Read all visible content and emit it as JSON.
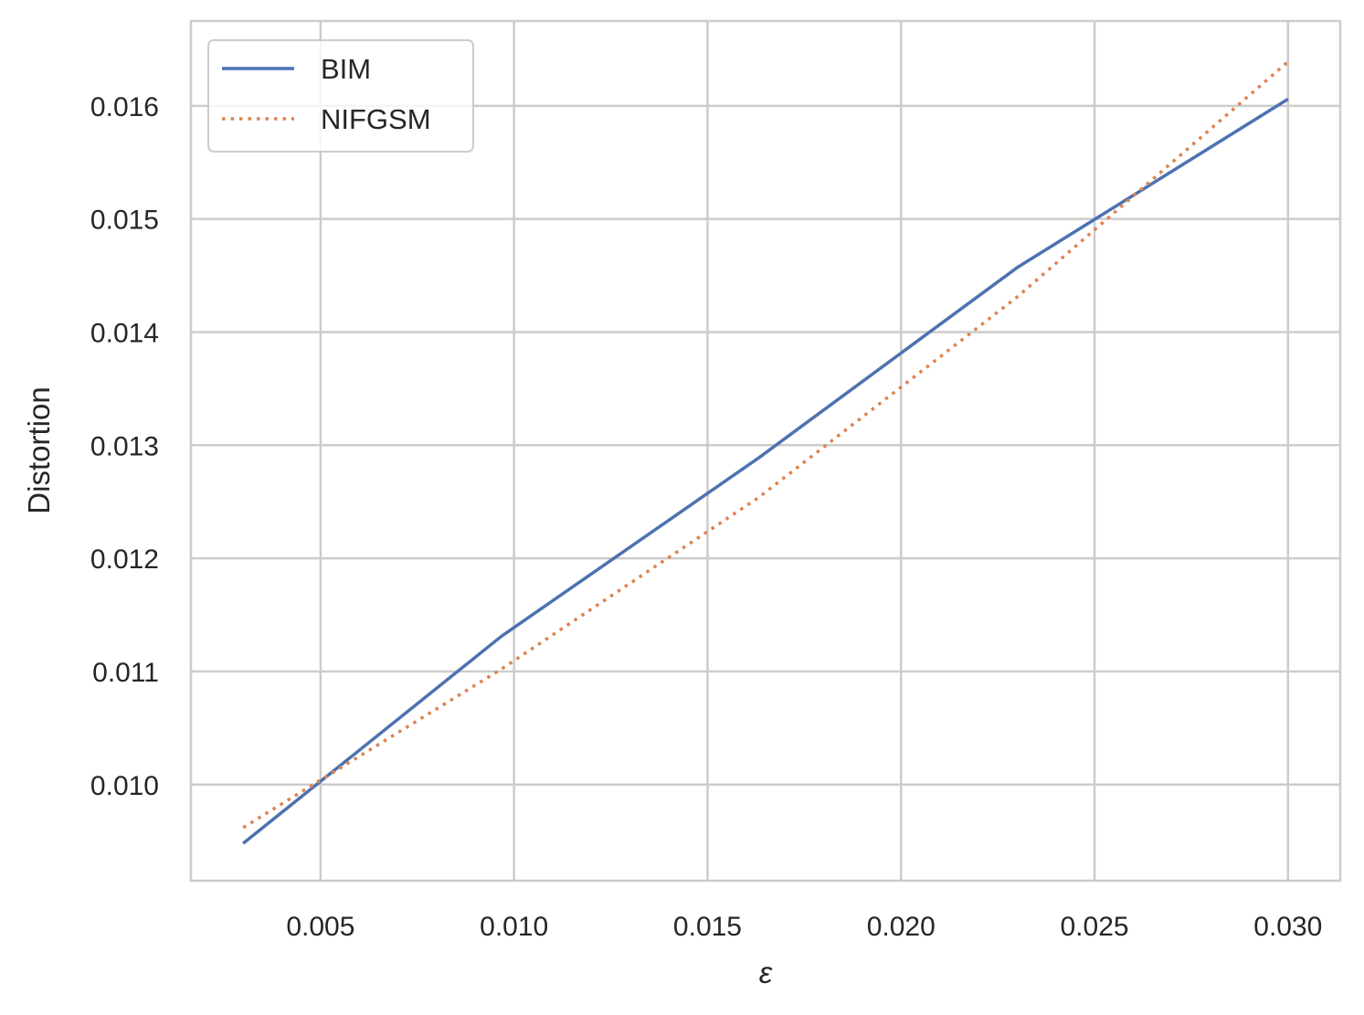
{
  "chart_data": {
    "type": "line",
    "title": "",
    "xlabel": "ε",
    "ylabel": "Distortion",
    "xlim": [
      0.00165,
      0.03135
    ],
    "ylim": [
      0.00915,
      0.01675
    ],
    "xticks": [
      0.005,
      0.01,
      0.015,
      0.02,
      0.025,
      0.03
    ],
    "xtick_labels": [
      "0.005",
      "0.010",
      "0.015",
      "0.020",
      "0.025",
      "0.030"
    ],
    "yticks": [
      0.01,
      0.011,
      0.012,
      0.013,
      0.014,
      0.015,
      0.016
    ],
    "ytick_labels": [
      "0.010",
      "0.011",
      "0.012",
      "0.013",
      "0.014",
      "0.015",
      "0.016"
    ],
    "grid": true,
    "legend_position": "top-left",
    "x": [
      0.003,
      0.00967,
      0.01633,
      0.023,
      0.03
    ],
    "series": [
      {
        "name": "BIM",
        "style": "solid",
        "color": "#4c72b0",
        "values": [
          0.00948,
          0.01131,
          0.01289,
          0.01457,
          0.01606
        ]
      },
      {
        "name": "NIFGSM",
        "style": "dotted",
        "color": "#dd8452",
        "values": [
          0.00962,
          0.01102,
          0.01254,
          0.01431,
          0.01639
        ]
      }
    ]
  }
}
